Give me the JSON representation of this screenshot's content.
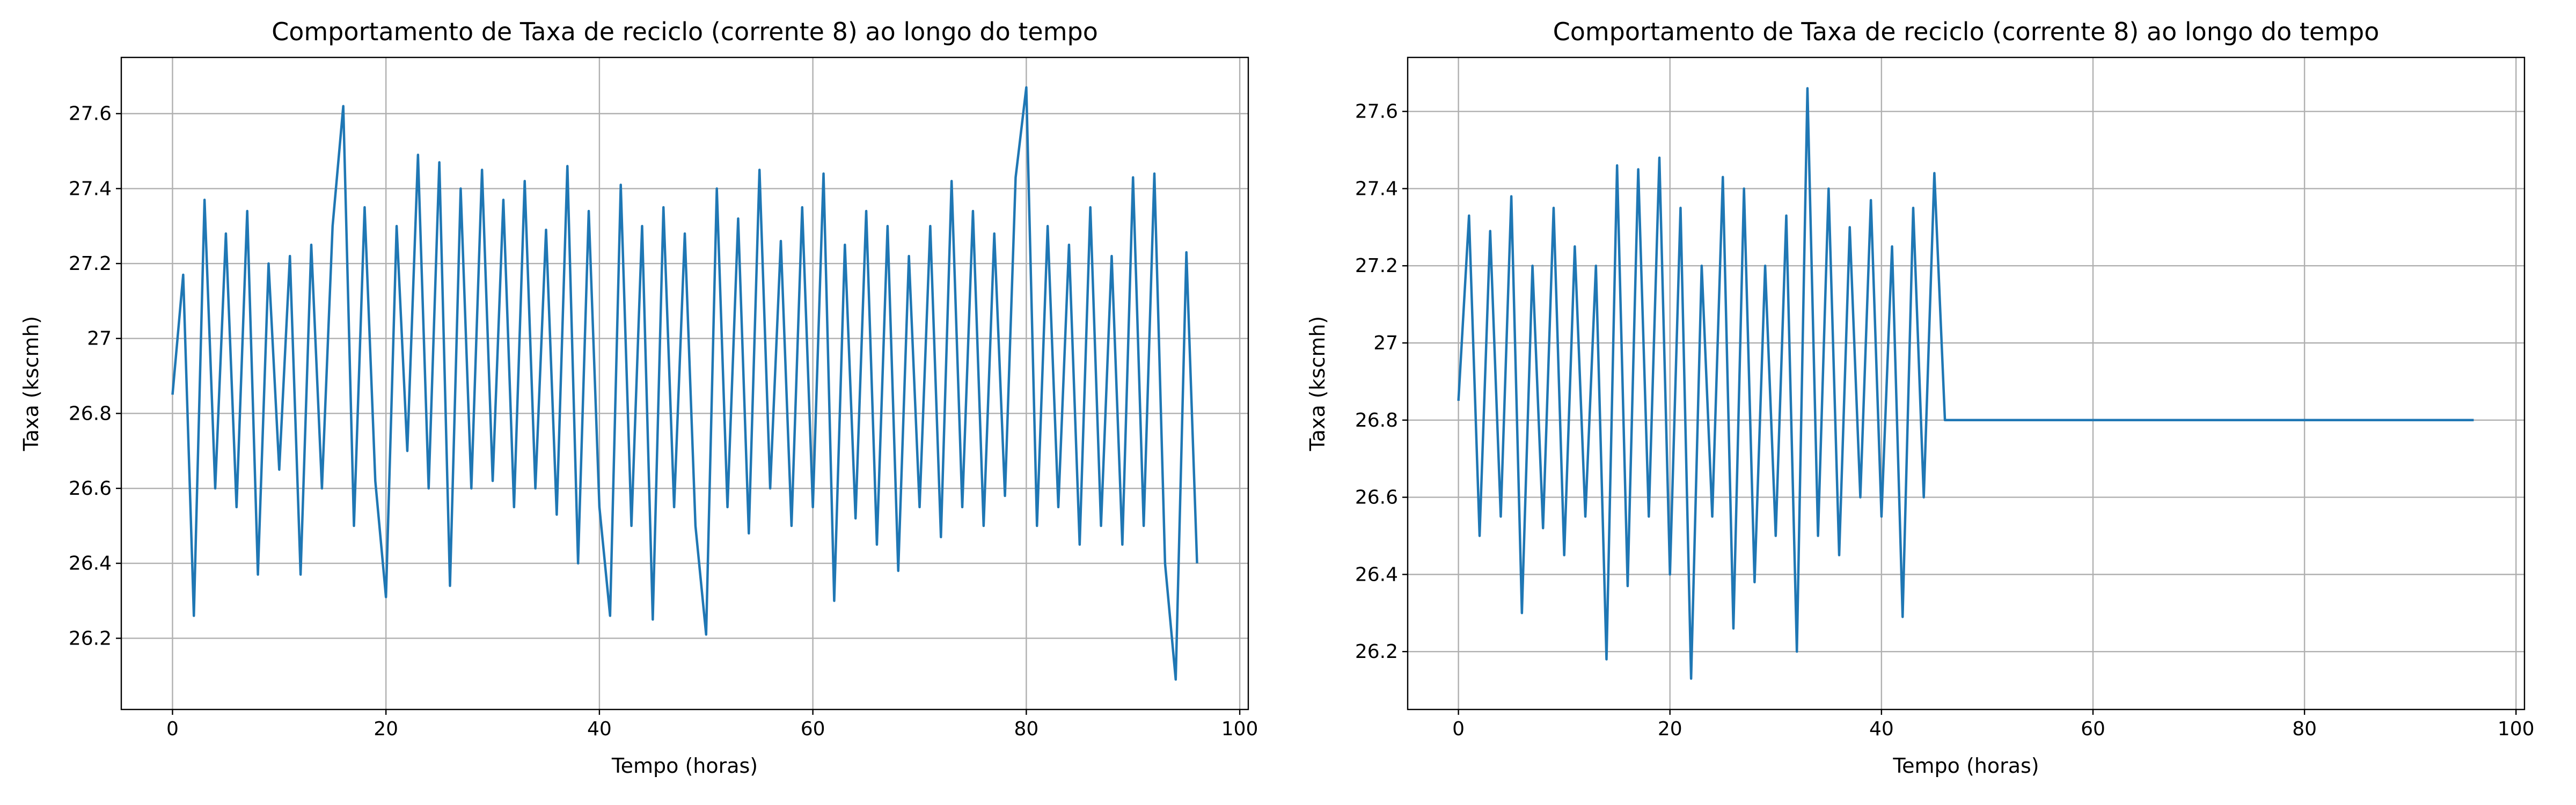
{
  "chart_data": [
    {
      "type": "line",
      "title": "Comportamento de Taxa de reciclo (corrente 8) ao longo do tempo",
      "xlabel": "Tempo (horas)",
      "ylabel": "Taxa (kscmh)",
      "xlim": [
        -4.8,
        100.8
      ],
      "xticks": [
        0,
        20,
        40,
        60,
        80,
        100
      ],
      "ylim": [
        26.01,
        27.75
      ],
      "yticks": [
        26.2,
        26.4,
        26.6,
        26.8,
        27.0,
        27.2,
        27.4,
        27.6
      ],
      "grid": true,
      "x": [
        0,
        1,
        2,
        3,
        4,
        5,
        6,
        7,
        8,
        9,
        10,
        11,
        12,
        13,
        14,
        15,
        16,
        17,
        18,
        19,
        20,
        21,
        22,
        23,
        24,
        25,
        26,
        27,
        28,
        29,
        30,
        31,
        32,
        33,
        34,
        35,
        36,
        37,
        38,
        39,
        40,
        41,
        42,
        43,
        44,
        45,
        46,
        47,
        48,
        49,
        50,
        51,
        52,
        53,
        54,
        55,
        56,
        57,
        58,
        59,
        60,
        61,
        62,
        63,
        64,
        65,
        66,
        67,
        68,
        69,
        70,
        71,
        72,
        73,
        74,
        75,
        76,
        77,
        78,
        79,
        80,
        81,
        82,
        83,
        84,
        85,
        86,
        87,
        88,
        89,
        90,
        91,
        92,
        93,
        94,
        95,
        96
      ],
      "series": [
        {
          "color": "#1f77b4",
          "values": [
            26.85,
            27.17,
            26.26,
            27.37,
            26.6,
            27.28,
            26.55,
            27.34,
            26.37,
            27.2,
            26.65,
            27.22,
            26.37,
            27.25,
            26.6,
            27.3,
            27.62,
            26.5,
            27.35,
            26.62,
            26.31,
            27.3,
            26.7,
            27.49,
            26.6,
            27.47,
            26.34,
            27.4,
            26.6,
            27.45,
            26.62,
            27.37,
            26.55,
            27.42,
            26.6,
            27.29,
            26.53,
            27.46,
            26.4,
            27.34,
            26.55,
            26.26,
            27.41,
            26.5,
            27.3,
            26.25,
            27.35,
            26.55,
            27.28,
            26.5,
            26.21,
            27.4,
            26.55,
            27.32,
            26.48,
            27.45,
            26.6,
            27.26,
            26.5,
            27.35,
            26.55,
            27.44,
            26.3,
            27.25,
            26.52,
            27.34,
            26.45,
            27.3,
            26.38,
            27.22,
            26.55,
            27.3,
            26.47,
            27.42,
            26.55,
            27.34,
            26.5,
            27.28,
            26.58,
            27.43,
            27.67,
            26.5,
            27.3,
            26.55,
            27.25,
            26.45,
            27.35,
            26.5,
            27.22,
            26.45,
            27.43,
            26.5,
            27.44,
            26.4,
            26.09,
            27.23,
            26.4
          ]
        }
      ]
    },
    {
      "type": "line",
      "title": "Comportamento de Taxa de reciclo (corrente 8) ao longo do tempo",
      "xlabel": "Tempo (horas)",
      "ylabel": "Taxa (kscmh)",
      "xlim": [
        -4.8,
        100.8
      ],
      "xticks": [
        0,
        20,
        40,
        60,
        80,
        100
      ],
      "ylim": [
        26.05,
        27.74
      ],
      "yticks": [
        26.2,
        26.4,
        26.6,
        26.8,
        27.0,
        27.2,
        27.4,
        27.6
      ],
      "grid": true,
      "x": [
        0,
        1,
        2,
        3,
        4,
        5,
        6,
        7,
        8,
        9,
        10,
        11,
        12,
        13,
        14,
        15,
        16,
        17,
        18,
        19,
        20,
        21,
        22,
        23,
        24,
        25,
        26,
        27,
        28,
        29,
        30,
        31,
        32,
        33,
        34,
        35,
        36,
        37,
        38,
        39,
        40,
        41,
        42,
        43,
        44,
        45,
        46,
        96
      ],
      "series": [
        {
          "color": "#1f77b4",
          "values": [
            26.85,
            27.33,
            26.5,
            27.29,
            26.55,
            27.38,
            26.3,
            27.2,
            26.52,
            27.35,
            26.45,
            27.25,
            26.55,
            27.2,
            26.18,
            27.46,
            26.37,
            27.45,
            26.55,
            27.48,
            26.4,
            27.35,
            26.13,
            27.2,
            26.55,
            27.43,
            26.26,
            27.4,
            26.38,
            27.2,
            26.5,
            27.33,
            26.2,
            27.66,
            26.5,
            27.4,
            26.45,
            27.3,
            26.6,
            27.37,
            26.55,
            27.25,
            26.29,
            27.35,
            26.6,
            27.44,
            26.8,
            26.8
          ]
        }
      ]
    }
  ]
}
